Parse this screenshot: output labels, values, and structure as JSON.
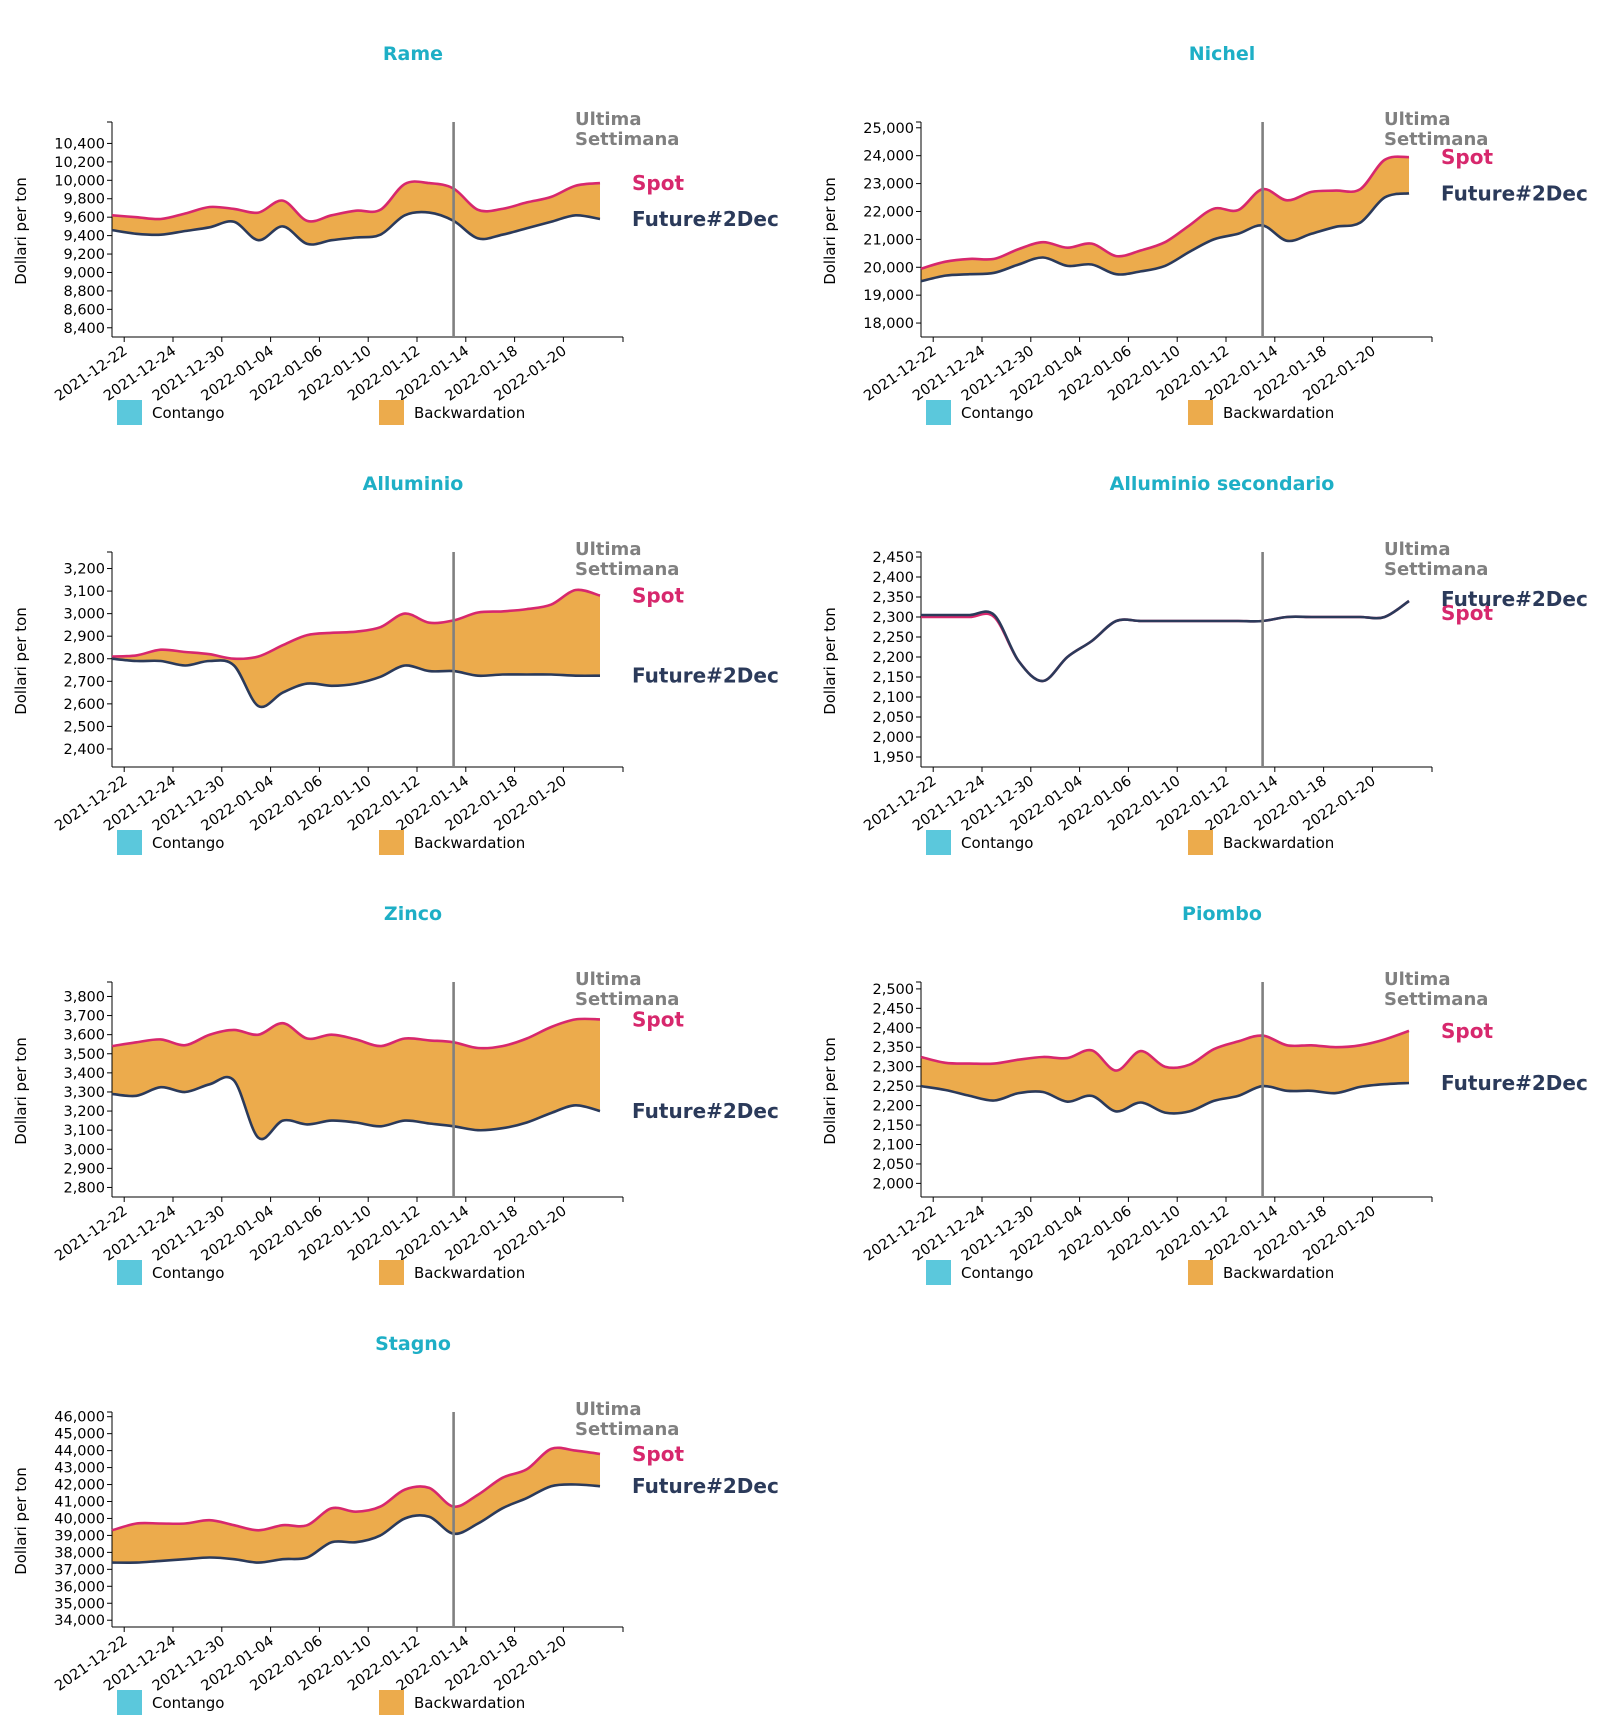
{
  "chart_data": [
    {
      "type": "area",
      "title": "Rame",
      "ylabel": "Dollari per ton",
      "ylim": [
        8300,
        10600
      ],
      "yticks": [
        8400,
        8600,
        8800,
        9000,
        9200,
        9400,
        9600,
        9800,
        10000,
        10200,
        10400
      ],
      "ytick_labels": [
        "8,400",
        "8,600",
        "8,800",
        "9,000",
        "9,200",
        "9,400",
        "9,600",
        "9,800",
        "10,000",
        "10,200",
        "10,400"
      ],
      "x": [
        0,
        1,
        2,
        3,
        4,
        5,
        6,
        7,
        8,
        9,
        10,
        11,
        12,
        13,
        14,
        15,
        16,
        17,
        18,
        19,
        20
      ],
      "series": [
        {
          "name": "Spot",
          "color": "#d7286d",
          "values": [
            9620,
            9600,
            9580,
            9640,
            9710,
            9690,
            9650,
            9780,
            9560,
            9620,
            9670,
            9680,
            9960,
            9970,
            9910,
            9680,
            9690,
            9760,
            9820,
            9940,
            9970
          ]
        },
        {
          "name": "Future#2Dec",
          "color": "#2b3a5a",
          "values": [
            9460,
            9420,
            9410,
            9450,
            9490,
            9550,
            9350,
            9500,
            9310,
            9350,
            9380,
            9410,
            9620,
            9650,
            9560,
            9370,
            9410,
            9480,
            9550,
            9620,
            9580
          ]
        }
      ]
    },
    {
      "type": "area",
      "title": "Nichel",
      "ylabel": "Dollari per ton",
      "ylim": [
        17500,
        25100
      ],
      "yticks": [
        18000,
        19000,
        20000,
        21000,
        22000,
        23000,
        24000,
        25000
      ],
      "ytick_labels": [
        "18,000",
        "19,000",
        "20,000",
        "21,000",
        "22,000",
        "23,000",
        "24,000",
        "25,000"
      ],
      "x": [
        0,
        1,
        2,
        3,
        4,
        5,
        6,
        7,
        8,
        9,
        10,
        11,
        12,
        13,
        14,
        15,
        16,
        17,
        18,
        19,
        20
      ],
      "series": [
        {
          "name": "Spot",
          "color": "#d7286d",
          "values": [
            19950,
            20200,
            20300,
            20300,
            20650,
            20900,
            20700,
            20850,
            20400,
            20600,
            20900,
            21500,
            22100,
            22050,
            22800,
            22400,
            22700,
            22750,
            22800,
            23850,
            23950
          ]
        },
        {
          "name": "Future#2Dec",
          "color": "#2b3a5a",
          "values": [
            19500,
            19700,
            19750,
            19800,
            20100,
            20350,
            20050,
            20100,
            19750,
            19850,
            20050,
            20550,
            21000,
            21200,
            21500,
            20950,
            21200,
            21450,
            21600,
            22500,
            22650
          ]
        }
      ]
    },
    {
      "type": "area",
      "title": "Alluminio",
      "ylabel": "Dollari per ton",
      "ylim": [
        2320,
        3260
      ],
      "yticks": [
        2400,
        2500,
        2600,
        2700,
        2800,
        2900,
        3000,
        3100,
        3200
      ],
      "ytick_labels": [
        "2,400",
        "2,500",
        "2,600",
        "2,700",
        "2,800",
        "2,900",
        "3,000",
        "3,100",
        "3,200"
      ],
      "x": [
        0,
        1,
        2,
        3,
        4,
        5,
        6,
        7,
        8,
        9,
        10,
        11,
        12,
        13,
        14,
        15,
        16,
        17,
        18,
        19,
        20
      ],
      "series": [
        {
          "name": "Spot",
          "color": "#d7286d",
          "values": [
            2810,
            2815,
            2840,
            2830,
            2820,
            2800,
            2810,
            2860,
            2905,
            2915,
            2920,
            2940,
            3000,
            2960,
            2970,
            3005,
            3010,
            3020,
            3040,
            3105,
            3080
          ]
        },
        {
          "name": "Future#2Dec",
          "color": "#2b3a5a",
          "values": [
            2800,
            2790,
            2790,
            2770,
            2790,
            2770,
            2590,
            2650,
            2690,
            2680,
            2690,
            2720,
            2770,
            2745,
            2745,
            2725,
            2730,
            2730,
            2730,
            2725,
            2725
          ]
        }
      ]
    },
    {
      "type": "line",
      "title": "Alluminio secondario",
      "ylabel": "Dollari per ton",
      "ylim": [
        1925,
        2455
      ],
      "yticks": [
        1950,
        2000,
        2050,
        2100,
        2150,
        2200,
        2250,
        2300,
        2350,
        2400,
        2450
      ],
      "ytick_labels": [
        "1,950",
        "2,000",
        "2,050",
        "2,100",
        "2,150",
        "2,200",
        "2,250",
        "2,300",
        "2,350",
        "2,400",
        "2,450"
      ],
      "x": [
        0,
        1,
        2,
        3,
        4,
        5,
        6,
        7,
        8,
        9,
        10,
        11,
        12,
        13,
        14,
        15,
        16,
        17,
        18,
        19,
        20
      ],
      "series": [
        {
          "name": "Spot",
          "color": "#d7286d",
          "values": [
            2300,
            2300,
            2300,
            2300,
            2190,
            2140,
            2200,
            2240,
            2290,
            2290,
            2290,
            2290,
            2290,
            2290,
            2290,
            2300,
            2300,
            2300,
            2300,
            2300,
            2340
          ]
        },
        {
          "name": "Future#2Dec",
          "color": "#2b3a5a",
          "values": [
            2305,
            2305,
            2305,
            2305,
            2190,
            2140,
            2200,
            2240,
            2290,
            2290,
            2290,
            2290,
            2290,
            2290,
            2290,
            2300,
            2300,
            2300,
            2300,
            2300,
            2340
          ]
        }
      ]
    },
    {
      "type": "area",
      "title": "Zinco",
      "ylabel": "Dollari per ton",
      "ylim": [
        2750,
        3860
      ],
      "yticks": [
        2800,
        2900,
        3000,
        3100,
        3200,
        3300,
        3400,
        3500,
        3600,
        3700,
        3800
      ],
      "ytick_labels": [
        "2,800",
        "2,900",
        "3,000",
        "3,100",
        "3,200",
        "3,300",
        "3,400",
        "3,500",
        "3,600",
        "3,700",
        "3,800"
      ],
      "x": [
        0,
        1,
        2,
        3,
        4,
        5,
        6,
        7,
        8,
        9,
        10,
        11,
        12,
        13,
        14,
        15,
        16,
        17,
        18,
        19,
        20
      ],
      "series": [
        {
          "name": "Spot",
          "color": "#d7286d",
          "values": [
            3540,
            3560,
            3575,
            3545,
            3600,
            3625,
            3600,
            3660,
            3580,
            3600,
            3575,
            3540,
            3580,
            3570,
            3560,
            3530,
            3540,
            3580,
            3640,
            3680,
            3680
          ]
        },
        {
          "name": "Future#2Dec",
          "color": "#2b3a5a",
          "values": [
            3290,
            3280,
            3325,
            3300,
            3340,
            3360,
            3060,
            3150,
            3130,
            3150,
            3140,
            3120,
            3150,
            3135,
            3120,
            3100,
            3110,
            3140,
            3190,
            3230,
            3200
          ]
        }
      ]
    },
    {
      "type": "area",
      "title": "Piombo",
      "ylabel": "Dollari per ton",
      "ylim": [
        1965,
        2510
      ],
      "yticks": [
        2000,
        2050,
        2100,
        2150,
        2200,
        2250,
        2300,
        2350,
        2400,
        2450,
        2500
      ],
      "ytick_labels": [
        "2,000",
        "2,050",
        "2,100",
        "2,150",
        "2,200",
        "2,250",
        "2,300",
        "2,350",
        "2,400",
        "2,450",
        "2,500"
      ],
      "x": [
        0,
        1,
        2,
        3,
        4,
        5,
        6,
        7,
        8,
        9,
        10,
        11,
        12,
        13,
        14,
        15,
        16,
        17,
        18,
        19,
        20
      ],
      "series": [
        {
          "name": "Spot",
          "color": "#d7286d",
          "values": [
            2325,
            2310,
            2308,
            2308,
            2318,
            2325,
            2322,
            2342,
            2290,
            2340,
            2300,
            2305,
            2345,
            2365,
            2380,
            2355,
            2355,
            2350,
            2355,
            2370,
            2392
          ]
        },
        {
          "name": "Future#2Dec",
          "color": "#2b3a5a",
          "values": [
            2250,
            2240,
            2225,
            2213,
            2232,
            2235,
            2210,
            2225,
            2185,
            2208,
            2182,
            2185,
            2212,
            2225,
            2250,
            2238,
            2238,
            2232,
            2248,
            2255,
            2258
          ]
        }
      ]
    },
    {
      "type": "area",
      "title": "Stagno",
      "ylabel": "Dollari per ton",
      "ylim": [
        33600,
        46100
      ],
      "yticks": [
        34000,
        35000,
        36000,
        37000,
        38000,
        39000,
        40000,
        41000,
        42000,
        43000,
        44000,
        45000,
        46000
      ],
      "ytick_labels": [
        "34,000",
        "35,000",
        "36,000",
        "37,000",
        "38,000",
        "39,000",
        "40,000",
        "41,000",
        "42,000",
        "43,000",
        "44,000",
        "45,000",
        "46,000"
      ],
      "x": [
        0,
        1,
        2,
        3,
        4,
        5,
        6,
        7,
        8,
        9,
        10,
        11,
        12,
        13,
        14,
        15,
        16,
        17,
        18,
        19,
        20
      ],
      "series": [
        {
          "name": "Spot",
          "color": "#d7286d",
          "values": [
            39300,
            39700,
            39700,
            39700,
            39900,
            39600,
            39300,
            39600,
            39600,
            40600,
            40400,
            40700,
            41700,
            41800,
            40700,
            41400,
            42400,
            42900,
            44100,
            44000,
            43800
          ]
        },
        {
          "name": "Future#2Dec",
          "color": "#2b3a5a",
          "values": [
            37400,
            37400,
            37500,
            37600,
            37700,
            37600,
            37400,
            37600,
            37700,
            38600,
            38600,
            39000,
            40000,
            40100,
            39100,
            39700,
            40600,
            41200,
            41900,
            42000,
            41900
          ]
        }
      ]
    }
  ],
  "shared": {
    "x_labels": [
      "2021-12-22",
      "2021-12-24",
      "2021-12-30",
      "2022-01-04",
      "2022-01-06",
      "2022-01-10",
      "2022-01-12",
      "2022-01-14",
      "2022-01-18",
      "2022-01-20"
    ],
    "x_label_positions": [
      0.5,
      2.5,
      4.5,
      6.5,
      8.5,
      10.5,
      12.5,
      14.5,
      16.5,
      18.5
    ],
    "last_week_x": 14,
    "last_week_label_line1": "Ultima",
    "last_week_label_line2": "Settimana",
    "legend": [
      {
        "label": "Contango",
        "color": "#5bc8dc"
      },
      {
        "label": "Backwardation",
        "color": "#ecab4c"
      }
    ],
    "fill_color": "#ecab4c",
    "title_color": "#1eafc6",
    "marker_color": "#808080"
  }
}
